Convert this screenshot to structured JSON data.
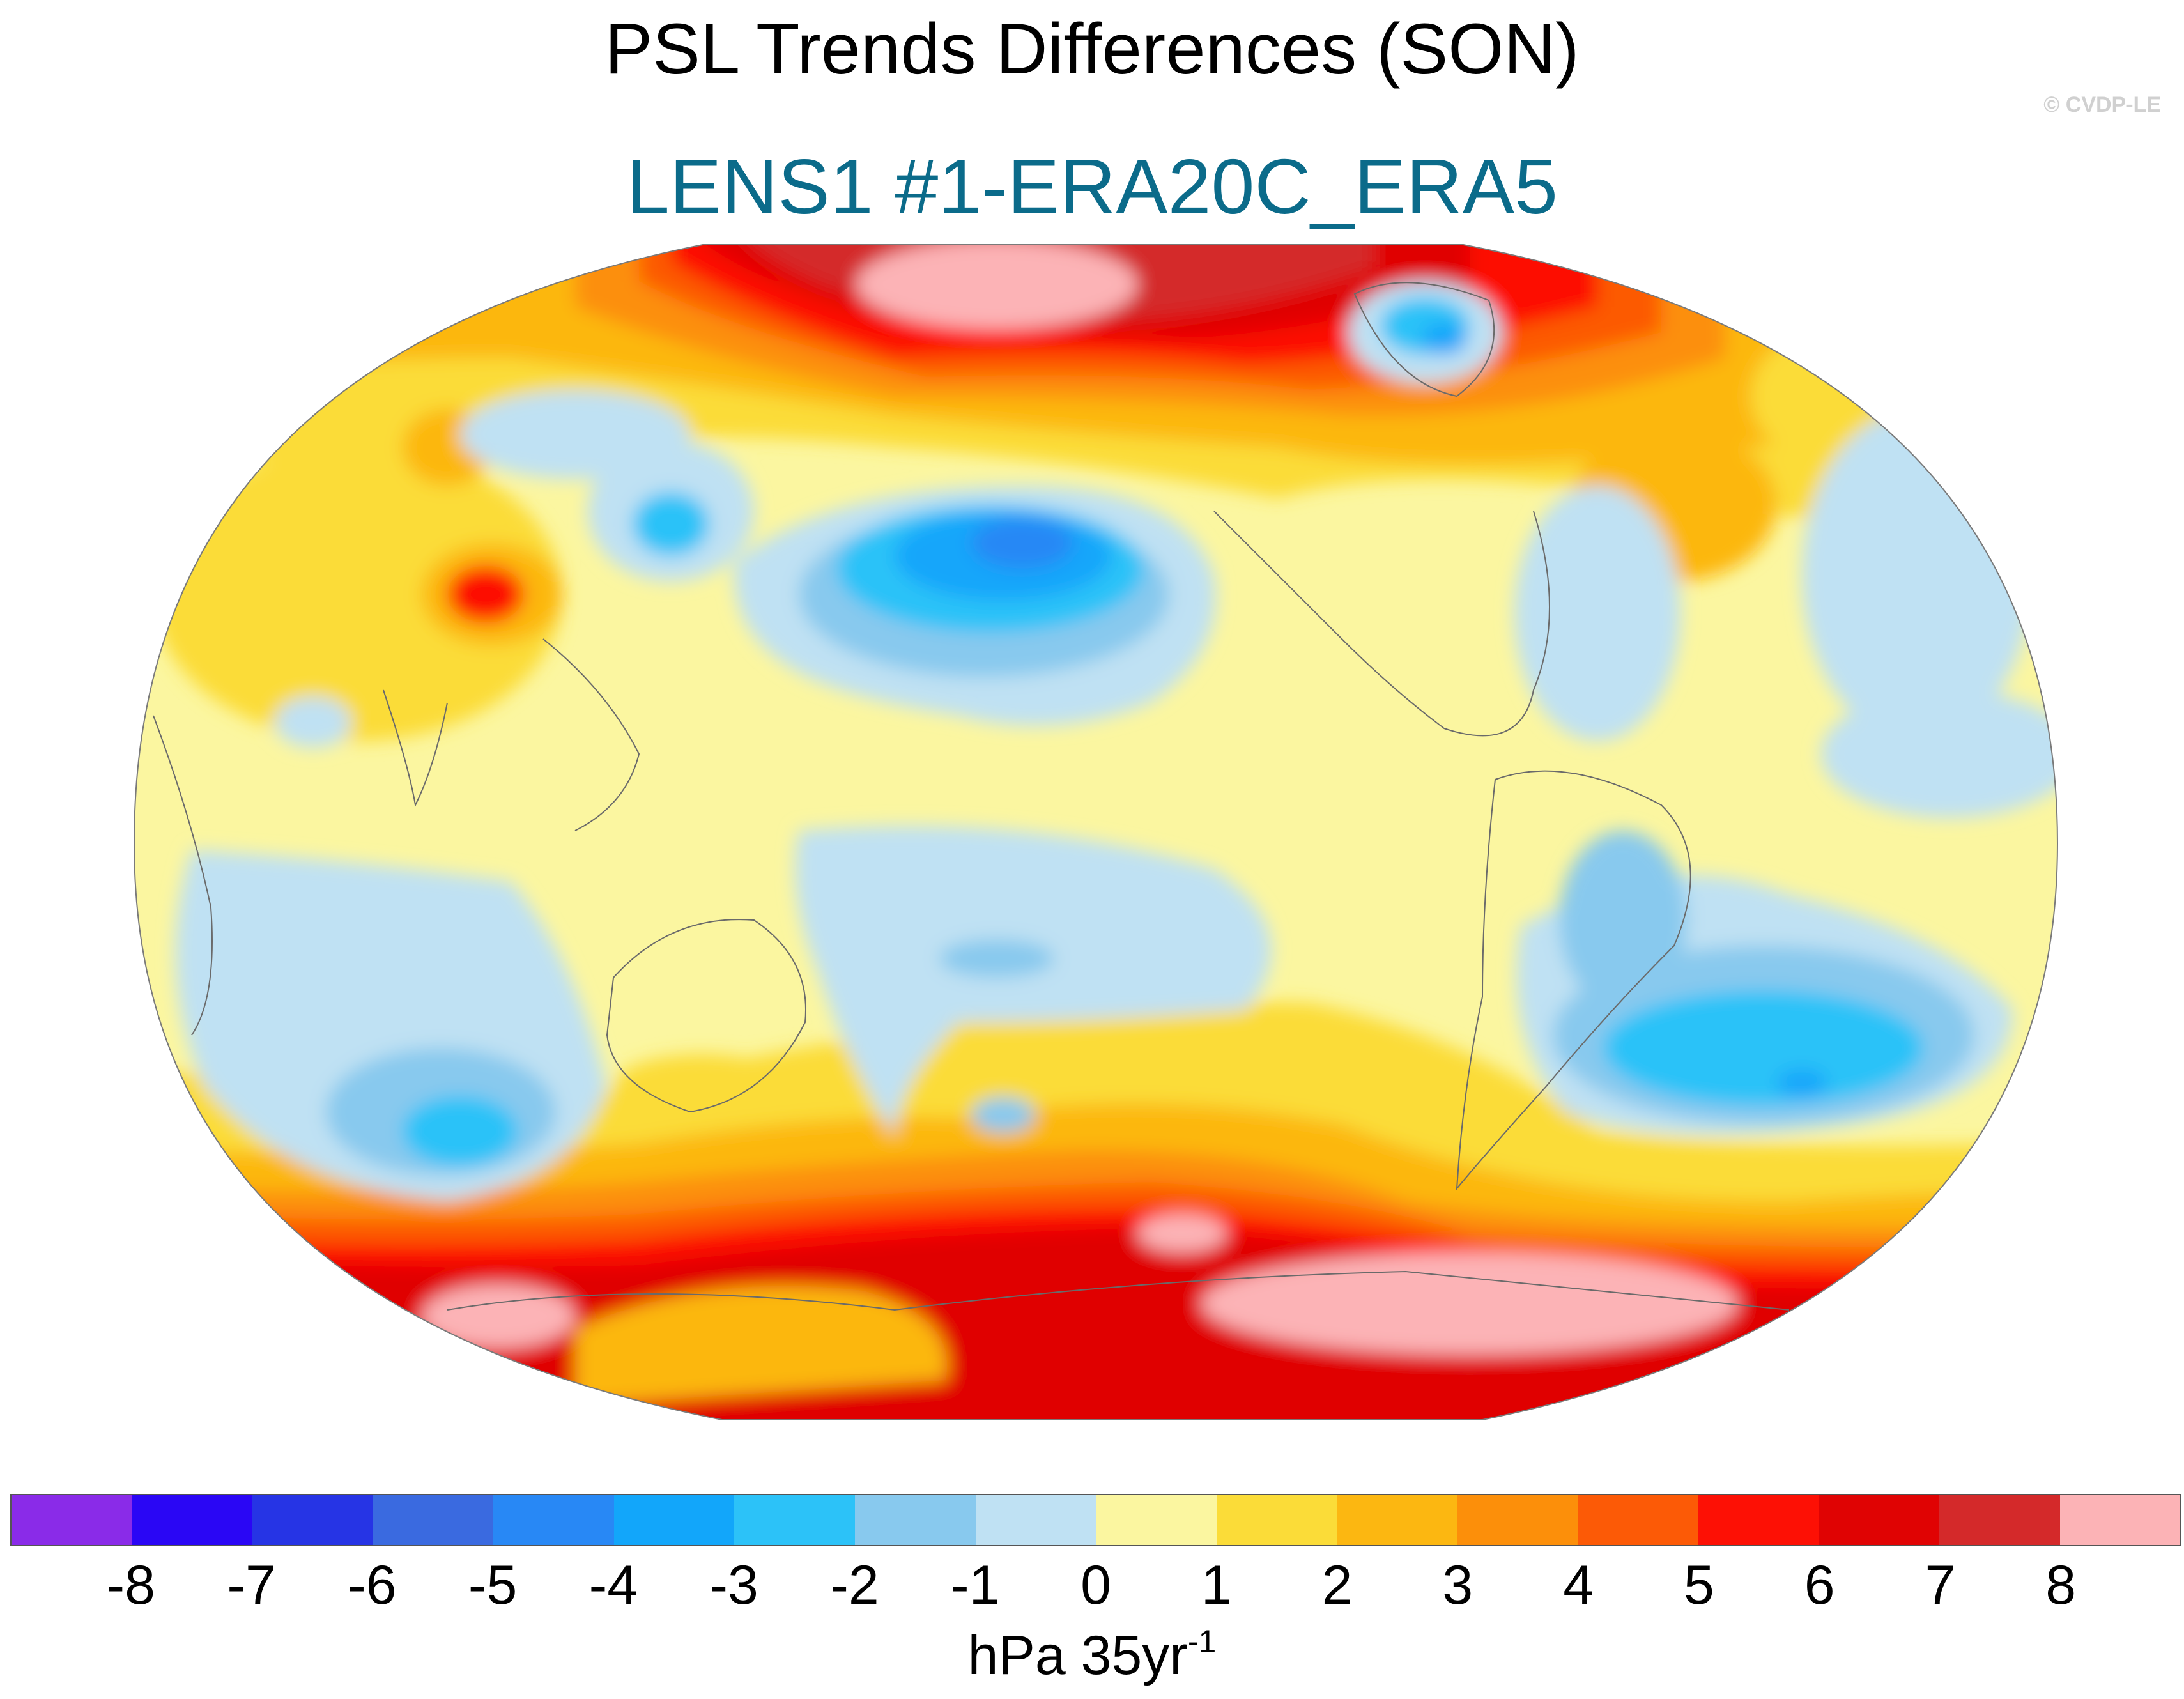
{
  "title": "PSL Trends Differences (SON)",
  "subtitle": "LENS1 #1-ERA20C_ERA5",
  "subtitle_color": "#0b6b8a",
  "copyright": "© CVDP-LE",
  "colorbar": {
    "colors": [
      "#8a2be8",
      "#2a06f5",
      "#2634e5",
      "#3a6ae0",
      "#2888f5",
      "#12a6fa",
      "#2cc2f8",
      "#88c9ee",
      "#bfe1f3",
      "#fbf6a0",
      "#fbdc38",
      "#fcb711",
      "#fc8f0a",
      "#fc5a06",
      "#fd1005",
      "#e00303",
      "#d4292a",
      "#fcb3b6"
    ],
    "tick_labels": [
      "-8",
      "-7",
      "-6",
      "-5",
      "-4",
      "-3",
      "-2",
      "-1",
      "0",
      "1",
      "2",
      "3",
      "4",
      "5",
      "6",
      "7",
      "8"
    ],
    "units_main": "hPa 35yr",
    "units_sup": "-1"
  },
  "map": {
    "projection": "robinson",
    "central_longitude": 180,
    "variable": "sea level pressure trend difference",
    "season": "SON",
    "coastlines": true,
    "features": [
      {
        "name": "arctic-north-pacific-high",
        "value_range": "≥8"
      },
      {
        "name": "north-pacific-low",
        "value_range": "-5 to -4"
      },
      {
        "name": "greenland-low",
        "value_range": "-4 to -3"
      },
      {
        "name": "southern-ocean-high-belt",
        "value_range": "5 to 8"
      },
      {
        "name": "south-atlantic-low",
        "value_range": "-4 to -3"
      },
      {
        "name": "south-indian-low",
        "value_range": "-3 to -2"
      }
    ]
  }
}
